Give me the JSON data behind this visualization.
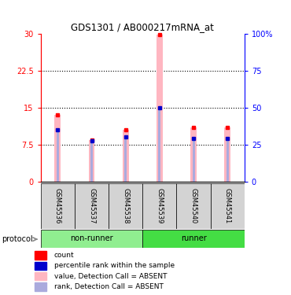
{
  "title": "GDS1301 / AB000217mRNA_at",
  "samples": [
    "GSM45536",
    "GSM45537",
    "GSM45538",
    "GSM45539",
    "GSM45540",
    "GSM45541"
  ],
  "pink_heights": [
    13.5,
    8.5,
    10.5,
    29.8,
    11.0,
    11.0
  ],
  "blue_heights": [
    10.5,
    8.2,
    9.0,
    15.0,
    8.8,
    8.8
  ],
  "ylim_left": [
    0,
    30
  ],
  "ylim_right": [
    0,
    100
  ],
  "yticks_left": [
    0,
    7.5,
    15,
    22.5,
    30
  ],
  "ytick_labels_left": [
    "0",
    "7.5",
    "15",
    "22.5",
    "30"
  ],
  "yticks_right": [
    0,
    25,
    50,
    75,
    100
  ],
  "ytick_labels_right": [
    "0",
    "25",
    "50",
    "75",
    "100%"
  ],
  "pink_color": "#FFB6C1",
  "light_blue_color": "#AAAADD",
  "red_color": "#FF0000",
  "blue_color": "#0000CC",
  "nonrunner_color": "#90EE90",
  "runner_color": "#44DD44",
  "legend_items": [
    {
      "color": "#FF0000",
      "label": "count"
    },
    {
      "color": "#0000CC",
      "label": "percentile rank within the sample"
    },
    {
      "color": "#FFB6C1",
      "label": "value, Detection Call = ABSENT"
    },
    {
      "color": "#AAAADD",
      "label": "rank, Detection Call = ABSENT"
    }
  ]
}
